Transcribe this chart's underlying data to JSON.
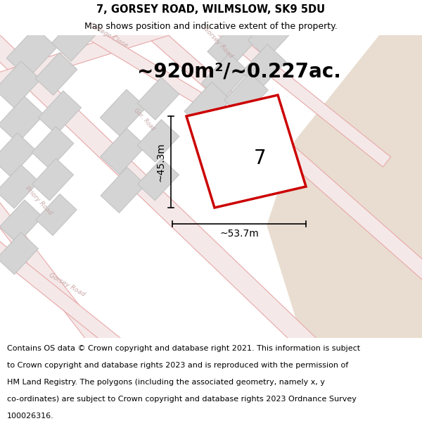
{
  "title": "7, GORSEY ROAD, WILMSLOW, SK9 5DU",
  "subtitle": "Map shows position and indicative extent of the property.",
  "area_text": "~920m²/~0.227ac.",
  "label_number": "7",
  "dim_width": "~53.7m",
  "dim_height": "~45.3m",
  "footer_lines": [
    "Contains OS data © Crown copyright and database right 2021. This information is subject",
    "to Crown copyright and database rights 2023 and is reproduced with the permission of",
    "HM Land Registry. The polygons (including the associated geometry, namely x, y",
    "co-ordinates) are subject to Crown copyright and database rights 2023 Ordnance Survey",
    "100026316."
  ],
  "map_bg": "#f5f2ee",
  "road_fill": "#f5e8e8",
  "road_edge": "#e8a8a8",
  "building_fill": "#d4d4d4",
  "building_edge": "#c0c0c0",
  "highlight_color": "#cc0000",
  "sand_color": "#e8ddd0",
  "title_fontsize": 10.5,
  "subtitle_fontsize": 9,
  "area_fontsize": 20,
  "label_fontsize": 20,
  "dim_fontsize": 10,
  "footer_fontsize": 8,
  "road_label_color": "#c8a8a8",
  "road_label_size": 6.5
}
